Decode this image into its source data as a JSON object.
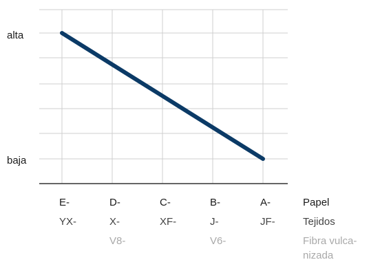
{
  "chart_data": {
    "type": "line",
    "title": "",
    "xlabel": "",
    "ylabel": "",
    "y_ticks": [
      "alta",
      "baja"
    ],
    "x_categories": [
      {
        "row1": "E-",
        "row2": "YX-",
        "row3": ""
      },
      {
        "row1": "D-",
        "row2": "X-",
        "row3": "V8-"
      },
      {
        "row1": "C-",
        "row2": "XF-",
        "row3": ""
      },
      {
        "row1": "B-",
        "row2": "J-",
        "row3": "V6-"
      },
      {
        "row1": "A-",
        "row2": "JF-",
        "row3": ""
      }
    ],
    "row_legend": [
      "Papel",
      "Tejidos",
      "Fibra vulca-",
      "nizada"
    ],
    "series": [
      {
        "values": [
          1,
          0.75,
          0.5,
          0.25,
          0
        ],
        "color": "#0b3a66"
      }
    ],
    "ylim": [
      0,
      1
    ],
    "grid": true
  },
  "colors": {
    "line": "#0b3a66",
    "grid": "#cfcfcf",
    "axis": "#333333"
  }
}
